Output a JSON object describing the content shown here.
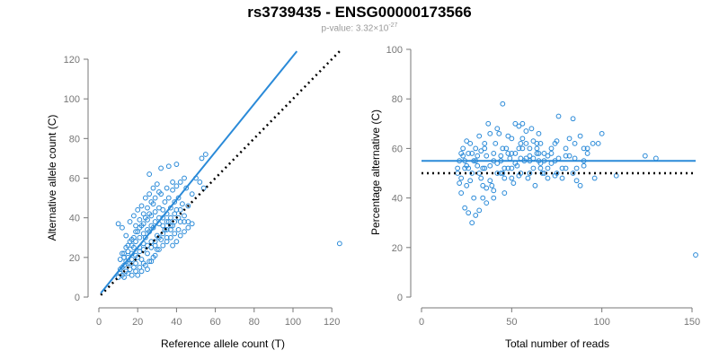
{
  "title": "rs3739435 - ENSG00000173566",
  "subtitle": {
    "prefix": "p-value: 3.32×10",
    "exponent": "-27"
  },
  "chart_data": [
    {
      "type": "scatter",
      "xlabel": "Reference allele count (T)",
      "ylabel": "Alternative allele count (C)",
      "xlim": [
        0,
        125
      ],
      "ylim": [
        0,
        120
      ],
      "xticks": [
        0,
        20,
        40,
        60,
        80,
        100,
        120
      ],
      "yticks": [
        0,
        20,
        40,
        60,
        80,
        100,
        120
      ],
      "fit_line": {
        "from": [
          1,
          2
        ],
        "to": [
          102,
          124
        ]
      },
      "reference_line": {
        "from": [
          1,
          1
        ],
        "to": [
          124,
          124
        ]
      },
      "points": [
        [
          10,
          10
        ],
        [
          11,
          12
        ],
        [
          12,
          15
        ],
        [
          13,
          10
        ],
        [
          14,
          18
        ],
        [
          15,
          20
        ],
        [
          16,
          14
        ],
        [
          17,
          22
        ],
        [
          18,
          25
        ],
        [
          19,
          17
        ],
        [
          20,
          20
        ],
        [
          21,
          23
        ],
        [
          22,
          19
        ],
        [
          23,
          27
        ],
        [
          24,
          30
        ],
        [
          25,
          22
        ],
        [
          26,
          33
        ],
        [
          27,
          28
        ],
        [
          28,
          35
        ],
        [
          29,
          26
        ],
        [
          30,
          31
        ],
        [
          31,
          37
        ],
        [
          32,
          29
        ],
        [
          33,
          40
        ],
        [
          34,
          34
        ],
        [
          35,
          42
        ],
        [
          36,
          38
        ],
        [
          37,
          45
        ],
        [
          38,
          36
        ],
        [
          39,
          48
        ],
        [
          40,
          44
        ],
        [
          41,
          50
        ],
        [
          42,
          38
        ],
        [
          44,
          38
        ],
        [
          46,
          38
        ],
        [
          48,
          52
        ],
        [
          50,
          60
        ],
        [
          52,
          58
        ],
        [
          54,
          55
        ],
        [
          55,
          72
        ],
        [
          53,
          70
        ],
        [
          45,
          55
        ],
        [
          43,
          47
        ],
        [
          36,
          66
        ],
        [
          38,
          58
        ],
        [
          35,
          55
        ],
        [
          32,
          52
        ],
        [
          28,
          47
        ],
        [
          26,
          42
        ],
        [
          24,
          40
        ],
        [
          22,
          36
        ],
        [
          20,
          33
        ],
        [
          18,
          30
        ],
        [
          16,
          28
        ],
        [
          14,
          25
        ],
        [
          12,
          22
        ],
        [
          11,
          19
        ],
        [
          13,
          16
        ],
        [
          15,
          12
        ],
        [
          17,
          11
        ],
        [
          19,
          13
        ],
        [
          21,
          15
        ],
        [
          23,
          17
        ],
        [
          25,
          14
        ],
        [
          27,
          18
        ],
        [
          29,
          21
        ],
        [
          31,
          24
        ],
        [
          33,
          26
        ],
        [
          35,
          28
        ],
        [
          37,
          30
        ],
        [
          39,
          32
        ],
        [
          41,
          34
        ],
        [
          12,
          35
        ],
        [
          10,
          37
        ],
        [
          14,
          31
        ],
        [
          16,
          38
        ],
        [
          18,
          41
        ],
        [
          20,
          44
        ],
        [
          22,
          46
        ],
        [
          24,
          50
        ],
        [
          26,
          52
        ],
        [
          28,
          55
        ],
        [
          30,
          57
        ],
        [
          19,
          36
        ],
        [
          21,
          39
        ],
        [
          23,
          42
        ],
        [
          25,
          45
        ],
        [
          27,
          48
        ],
        [
          29,
          50
        ],
        [
          31,
          53
        ],
        [
          33,
          44
        ],
        [
          34,
          48
        ],
        [
          36,
          50
        ],
        [
          38,
          54
        ],
        [
          40,
          56
        ],
        [
          42,
          58
        ],
        [
          44,
          60
        ],
        [
          26,
          62
        ],
        [
          32,
          65
        ],
        [
          40,
          67
        ],
        [
          42,
          44
        ],
        [
          44,
          41
        ],
        [
          46,
          46
        ],
        [
          38,
          26
        ],
        [
          40,
          28
        ],
        [
          42,
          31
        ],
        [
          44,
          33
        ],
        [
          46,
          35
        ],
        [
          48,
          37
        ],
        [
          35,
          30
        ],
        [
          37,
          34
        ],
        [
          30,
          24
        ],
        [
          28,
          20
        ],
        [
          26,
          18
        ],
        [
          24,
          16
        ],
        [
          22,
          13
        ],
        [
          20,
          11
        ],
        [
          18,
          15
        ],
        [
          16,
          17
        ],
        [
          14,
          13
        ],
        [
          12,
          11
        ],
        [
          11,
          14
        ],
        [
          13,
          20
        ],
        [
          15,
          23
        ],
        [
          17,
          26
        ],
        [
          19,
          28
        ],
        [
          21,
          30
        ],
        [
          23,
          32
        ],
        [
          25,
          34
        ],
        [
          27,
          36
        ],
        [
          29,
          38
        ],
        [
          31,
          40
        ],
        [
          33,
          36
        ],
        [
          35,
          38
        ],
        [
          37,
          40
        ],
        [
          39,
          42
        ],
        [
          41,
          40
        ],
        [
          15,
          17
        ],
        [
          17,
          19
        ],
        [
          19,
          21
        ],
        [
          21,
          25
        ],
        [
          23,
          24
        ],
        [
          25,
          26
        ],
        [
          27,
          25
        ],
        [
          29,
          28
        ],
        [
          31,
          30
        ],
        [
          33,
          32
        ],
        [
          35,
          34
        ],
        [
          37,
          36
        ],
        [
          39,
          38
        ],
        [
          13,
          22
        ],
        [
          15,
          26
        ],
        [
          17,
          29
        ],
        [
          19,
          33
        ],
        [
          21,
          35
        ],
        [
          23,
          37
        ],
        [
          25,
          39
        ],
        [
          27,
          41
        ],
        [
          29,
          43
        ],
        [
          31,
          45
        ],
        [
          124,
          27
        ]
      ]
    },
    {
      "type": "scatter",
      "xlabel": "Total number of reads",
      "ylabel": "Percentage alternative (C)",
      "xlim": [
        0,
        150
      ],
      "ylim": [
        0,
        100
      ],
      "xticks": [
        0,
        50,
        100,
        150
      ],
      "yticks": [
        0,
        20,
        40,
        60,
        80,
        100
      ],
      "fit_line": {
        "from": [
          0,
          55
        ],
        "to": [
          152,
          55
        ]
      },
      "reference_line": {
        "from": [
          0,
          50
        ],
        "to": [
          152,
          50
        ]
      },
      "points": [
        [
          20,
          50
        ],
        [
          21,
          55
        ],
        [
          22,
          48
        ],
        [
          23,
          60
        ],
        [
          24,
          52
        ],
        [
          25,
          45
        ],
        [
          26,
          58
        ],
        [
          27,
          62
        ],
        [
          28,
          50
        ],
        [
          29,
          40
        ],
        [
          30,
          55
        ],
        [
          31,
          57
        ],
        [
          32,
          65
        ],
        [
          33,
          48
        ],
        [
          34,
          52
        ],
        [
          35,
          60
        ],
        [
          36,
          38
        ],
        [
          37,
          70
        ],
        [
          38,
          53
        ],
        [
          39,
          45
        ],
        [
          40,
          58
        ],
        [
          41,
          62
        ],
        [
          42,
          50
        ],
        [
          43,
          66
        ],
        [
          44,
          55
        ],
        [
          45,
          78
        ],
        [
          46,
          48
        ],
        [
          47,
          60
        ],
        [
          48,
          52
        ],
        [
          49,
          56
        ],
        [
          50,
          64
        ],
        [
          51,
          46
        ],
        [
          52,
          58
        ],
        [
          53,
          53
        ],
        [
          54,
          60
        ],
        [
          55,
          50
        ],
        [
          56,
          70
        ],
        [
          57,
          55
        ],
        [
          58,
          62
        ],
        [
          59,
          48
        ],
        [
          60,
          57
        ],
        [
          61,
          68
        ],
        [
          62,
          52
        ],
        [
          63,
          45
        ],
        [
          64,
          60
        ],
        [
          65,
          55
        ],
        [
          66,
          62
        ],
        [
          67,
          50
        ],
        [
          68,
          58
        ],
        [
          70,
          52
        ],
        [
          72,
          60
        ],
        [
          74,
          55
        ],
        [
          76,
          73
        ],
        [
          78,
          48
        ],
        [
          80,
          60
        ],
        [
          82,
          57
        ],
        [
          84,
          72
        ],
        [
          86,
          52
        ],
        [
          88,
          45
        ],
        [
          90,
          55
        ],
        [
          92,
          60
        ],
        [
          95,
          62
        ],
        [
          98,
          62
        ],
        [
          100,
          66
        ],
        [
          108,
          49
        ],
        [
          124,
          57
        ],
        [
          130,
          56
        ],
        [
          152,
          17
        ],
        [
          22,
          42
        ],
        [
          24,
          36
        ],
        [
          26,
          34
        ],
        [
          28,
          30
        ],
        [
          30,
          33
        ],
        [
          32,
          35
        ],
        [
          34,
          40
        ],
        [
          36,
          44
        ],
        [
          38,
          47
        ],
        [
          40,
          43
        ],
        [
          42,
          54
        ],
        [
          44,
          57
        ],
        [
          46,
          52
        ],
        [
          48,
          65
        ],
        [
          50,
          58
        ],
        [
          52,
          70
        ],
        [
          54,
          69
        ],
        [
          56,
          64
        ],
        [
          58,
          67
        ],
        [
          60,
          50
        ],
        [
          62,
          56
        ],
        [
          64,
          62
        ],
        [
          66,
          54
        ],
        [
          68,
          50
        ],
        [
          70,
          48
        ],
        [
          72,
          54
        ],
        [
          74,
          62
        ],
        [
          76,
          56
        ],
        [
          78,
          52
        ],
        [
          80,
          57
        ],
        [
          82,
          64
        ],
        [
          84,
          50
        ],
        [
          86,
          47
        ],
        [
          88,
          65
        ],
        [
          90,
          53
        ],
        [
          92,
          58
        ],
        [
          96,
          48
        ],
        [
          85,
          56
        ],
        [
          75,
          63
        ],
        [
          65,
          66
        ],
        [
          35,
          62
        ],
        [
          33,
          59
        ],
        [
          31,
          53
        ],
        [
          29,
          55
        ],
        [
          27,
          47
        ],
        [
          25,
          53
        ],
        [
          23,
          57
        ],
        [
          21,
          46
        ],
        [
          20,
          52
        ],
        [
          25,
          63
        ],
        [
          30,
          60
        ],
        [
          35,
          52
        ],
        [
          40,
          55
        ],
        [
          45,
          60
        ],
        [
          50,
          48
        ],
        [
          55,
          62
        ],
        [
          60,
          60
        ],
        [
          38,
          66
        ],
        [
          42,
          68
        ],
        [
          44,
          50
        ],
        [
          46,
          42
        ],
        [
          48,
          58
        ],
        [
          36,
          57
        ],
        [
          34,
          45
        ],
        [
          32,
          50
        ],
        [
          28,
          58
        ],
        [
          26,
          52
        ],
        [
          24,
          55
        ],
        [
          22,
          58
        ],
        [
          40,
          40
        ],
        [
          45,
          50
        ],
        [
          50,
          52
        ],
        [
          55,
          56
        ],
        [
          60,
          55
        ],
        [
          65,
          58
        ],
        [
          70,
          57
        ],
        [
          75,
          50
        ],
        [
          80,
          52
        ],
        [
          85,
          62
        ],
        [
          90,
          60
        ],
        [
          52,
          54
        ],
        [
          54,
          49
        ],
        [
          56,
          60
        ],
        [
          58,
          56
        ],
        [
          62,
          63
        ],
        [
          64,
          58
        ],
        [
          66,
          52
        ],
        [
          68,
          55
        ],
        [
          72,
          58
        ],
        [
          74,
          49
        ]
      ]
    }
  ]
}
